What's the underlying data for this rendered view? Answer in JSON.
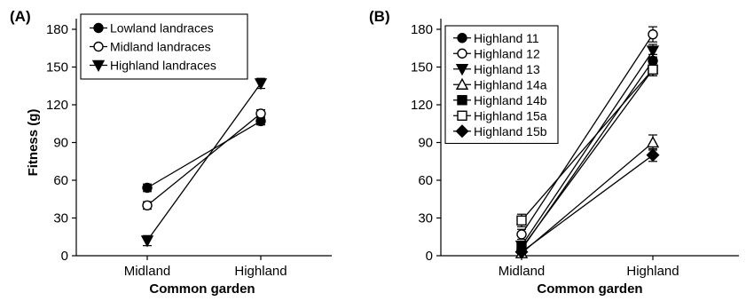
{
  "chart_data": [
    {
      "panel_label": "(A)",
      "type": "line",
      "categories": [
        "Midland",
        "Highland"
      ],
      "xlabel": "Common garden",
      "ylabel": "Fitness (g)",
      "ylim": [
        0,
        180
      ],
      "yticks": [
        0,
        30,
        60,
        90,
        120,
        150,
        180
      ],
      "grid": false,
      "legend": "top-left",
      "series": [
        {
          "name": "Lowland landraces",
          "marker": "filled-circle",
          "values": [
            54,
            107
          ],
          "err": [
            3,
            3
          ]
        },
        {
          "name": "Midland landraces",
          "marker": "open-circle",
          "values": [
            40,
            113
          ],
          "err": [
            3,
            3
          ]
        },
        {
          "name": "Highland landraces",
          "marker": "filled-triangle-down",
          "values": [
            12,
            137
          ],
          "err": [
            4,
            4
          ]
        }
      ]
    },
    {
      "panel_label": "(B)",
      "type": "line",
      "categories": [
        "Midland",
        "Highland"
      ],
      "xlabel": "Common garden",
      "ylabel": "",
      "ylim": [
        0,
        180
      ],
      "yticks": [
        0,
        30,
        60,
        90,
        120,
        150,
        180
      ],
      "grid": false,
      "legend": "top-left",
      "series": [
        {
          "name": "Highland 11",
          "marker": "filled-circle",
          "values": [
            5,
            155
          ],
          "err": [
            3,
            5
          ]
        },
        {
          "name": "Highland 12",
          "marker": "open-circle",
          "values": [
            17,
            176
          ],
          "err": [
            4,
            6
          ]
        },
        {
          "name": "Highland 13",
          "marker": "filled-triangle-down",
          "values": [
            8,
            163
          ],
          "err": [
            3,
            5
          ]
        },
        {
          "name": "Highland 14a",
          "marker": "open-triangle-up",
          "values": [
            2,
            90
          ],
          "err": [
            2,
            6
          ]
        },
        {
          "name": "Highland 14b",
          "marker": "filled-square",
          "values": [
            6,
            148
          ],
          "err": [
            3,
            5
          ]
        },
        {
          "name": "Highland 15a",
          "marker": "open-square",
          "values": [
            28,
            148
          ],
          "err": [
            5,
            5
          ]
        },
        {
          "name": "Highland 15b",
          "marker": "filled-diamond",
          "values": [
            3,
            80
          ],
          "err": [
            2,
            5
          ]
        }
      ]
    }
  ]
}
